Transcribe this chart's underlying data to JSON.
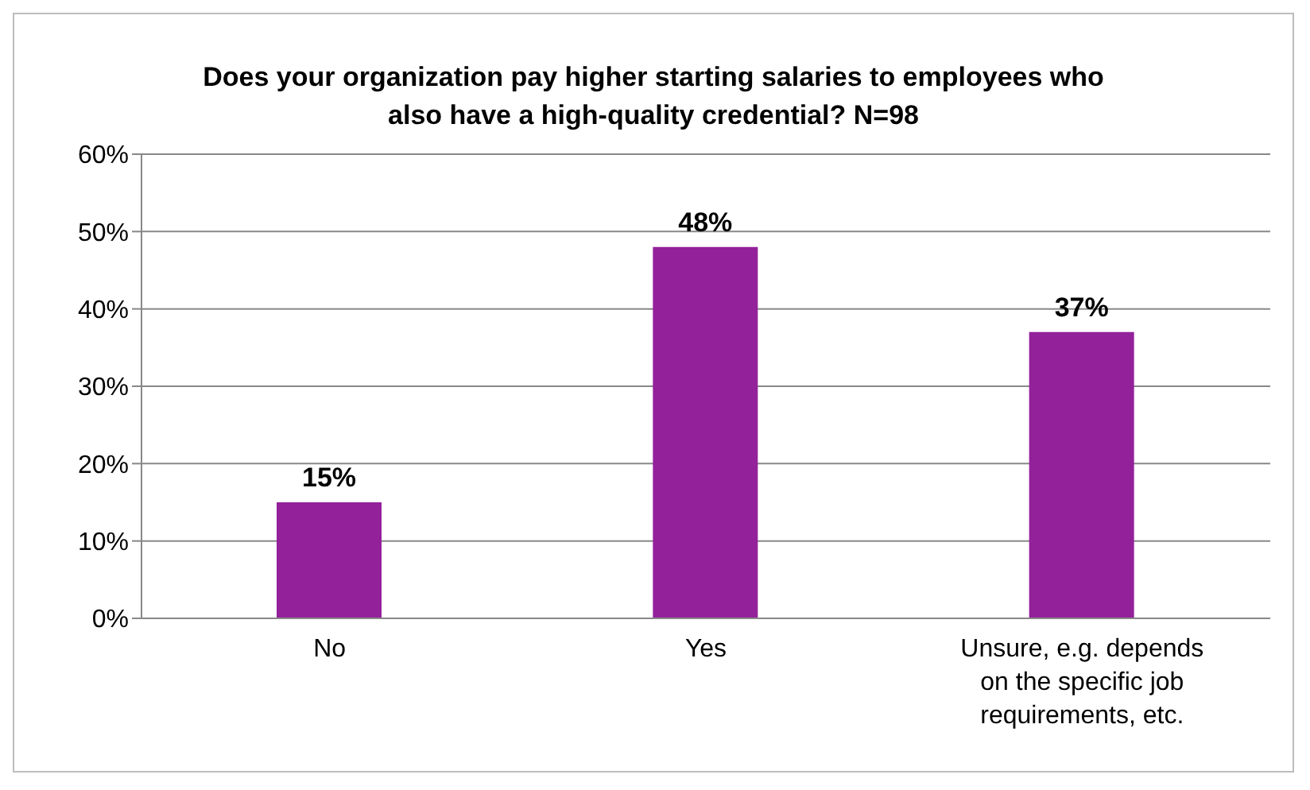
{
  "chart_data": {
    "type": "bar",
    "title": "Does your organization pay higher starting salaries to employees who also have a high-quality credential?  N=98",
    "categories": [
      "No",
      "Yes",
      "Unsure, e.g. depends on the specific job requirements, etc."
    ],
    "values": [
      15,
      48,
      37
    ],
    "color": "#93219a",
    "value_labels": [
      "15%",
      "48%",
      "37%"
    ],
    "ylim": [
      0,
      60
    ],
    "yticks": [
      {
        "value": 0,
        "label": "0%"
      },
      {
        "value": 10,
        "label": "10%"
      },
      {
        "value": 20,
        "label": "20%"
      },
      {
        "value": 30,
        "label": "30%"
      },
      {
        "value": 40,
        "label": "40%"
      },
      {
        "value": 50,
        "label": "50%"
      },
      {
        "value": 60,
        "label": "60%"
      }
    ],
    "grid": "y",
    "legend": false
  }
}
